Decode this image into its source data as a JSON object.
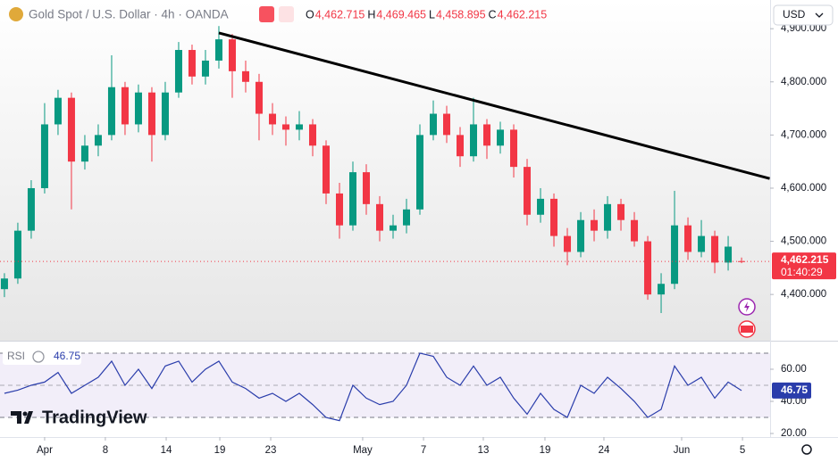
{
  "chart_data": [
    {
      "type": "candlestick",
      "title": "Gold Spot / U.S. Dollar · 4h · OANDA",
      "legend_values": [
        {
          "key": "O",
          "value": "4,462.715"
        },
        {
          "key": "H",
          "value": "4,469.465"
        },
        {
          "key": "L",
          "value": "4,458.895"
        },
        {
          "key": "C",
          "value": "4,462.215"
        }
      ],
      "currency": "USD",
      "countdown": "01:40:29",
      "last_value_label": "4,462.215",
      "up_color": "#089981",
      "down_color": "#f23645",
      "x": [
        0,
        1,
        2,
        3,
        4,
        5,
        6,
        7,
        8,
        9,
        10,
        11,
        12,
        13,
        14,
        15,
        16,
        17,
        18,
        19,
        20,
        21,
        22,
        23,
        24,
        25,
        26,
        27,
        28,
        29,
        30,
        31,
        32,
        33,
        34,
        35,
        36,
        37,
        38,
        39,
        40,
        41,
        42,
        43,
        44,
        45,
        46,
        47,
        48,
        49,
        50,
        51,
        52,
        53,
        54,
        55
      ],
      "open": [
        4410,
        4430,
        4520,
        4600,
        4720,
        4770,
        4650,
        4680,
        4700,
        4790,
        4720,
        4780,
        4700,
        4780,
        4860,
        4810,
        4840,
        4880,
        4820,
        4800,
        4740,
        4720,
        4710,
        4720,
        4680,
        4590,
        4530,
        4630,
        4570,
        4520,
        4530,
        4560,
        4700,
        4740,
        4700,
        4660,
        4720,
        4680,
        4710,
        4640,
        4550,
        4580,
        4510,
        4480,
        4540,
        4520,
        4570,
        4540,
        4500,
        4400,
        4420,
        4530,
        4480,
        4510,
        4460,
        4462.715
      ],
      "high": [
        4440,
        4535,
        4615,
        4760,
        4785,
        4780,
        4700,
        4720,
        4850,
        4800,
        4795,
        4790,
        4800,
        4875,
        4870,
        4860,
        4905,
        4890,
        4840,
        4815,
        4760,
        4735,
        4745,
        4730,
        4690,
        4610,
        4650,
        4645,
        4585,
        4550,
        4580,
        4720,
        4765,
        4755,
        4715,
        4770,
        4730,
        4725,
        4720,
        4655,
        4600,
        4590,
        4525,
        4555,
        4560,
        4585,
        4580,
        4555,
        4510,
        4440,
        4595,
        4545,
        4540,
        4520,
        4510,
        4469.465
      ],
      "low": [
        4395,
        4420,
        4505,
        4590,
        4700,
        4560,
        4635,
        4660,
        4690,
        4700,
        4705,
        4650,
        4690,
        4770,
        4795,
        4795,
        4825,
        4770,
        4780,
        4690,
        4700,
        4680,
        4690,
        4660,
        4570,
        4505,
        4520,
        4550,
        4500,
        4505,
        4515,
        4550,
        4690,
        4685,
        4640,
        4650,
        4655,
        4665,
        4620,
        4530,
        4535,
        4490,
        4455,
        4470,
        4500,
        4505,
        4520,
        4490,
        4390,
        4365,
        4410,
        4465,
        4470,
        4440,
        4445,
        4458.895
      ],
      "close": [
        4430,
        4520,
        4600,
        4720,
        4770,
        4650,
        4680,
        4700,
        4790,
        4720,
        4780,
        4700,
        4780,
        4860,
        4810,
        4840,
        4880,
        4820,
        4800,
        4740,
        4720,
        4710,
        4720,
        4680,
        4590,
        4530,
        4630,
        4570,
        4520,
        4530,
        4560,
        4700,
        4740,
        4700,
        4660,
        4720,
        4680,
        4710,
        4640,
        4550,
        4580,
        4510,
        4480,
        4540,
        4520,
        4570,
        4540,
        4500,
        4400,
        4420,
        4530,
        4480,
        4510,
        4460,
        4490,
        4462.215
      ],
      "xlim": [
        -0.33,
        57.13
      ],
      "ylim": [
        4313,
        4954
      ],
      "yticks": [
        {
          "value": 4400,
          "label": "4,400.000"
        },
        {
          "value": 4500,
          "label": "4,500.000"
        },
        {
          "value": 4600,
          "label": "4,600.000"
        },
        {
          "value": 4700,
          "label": "4,700.000"
        },
        {
          "value": 4800,
          "label": "4,800.000"
        },
        {
          "value": 4900,
          "label": "4,900.000"
        }
      ],
      "trendline": {
        "x": [
          16,
          57.1
        ],
        "y": [
          4892,
          4618
        ],
        "color": "#000000"
      }
    },
    {
      "type": "line",
      "title": "RSI",
      "color": "#2a3dab",
      "value_label": "46.75",
      "x": [
        0,
        1,
        2,
        3,
        4,
        5,
        6,
        7,
        8,
        9,
        10,
        11,
        12,
        13,
        14,
        15,
        16,
        17,
        18,
        19,
        20,
        21,
        22,
        23,
        24,
        25,
        26,
        27,
        28,
        29,
        30,
        31,
        32,
        33,
        34,
        35,
        36,
        37,
        38,
        39,
        40,
        41,
        42,
        43,
        44,
        45,
        46,
        47,
        48,
        49,
        50,
        51,
        52,
        53,
        54,
        55
      ],
      "values": [
        45,
        47,
        50,
        52,
        58,
        45,
        50,
        55,
        65,
        50,
        60,
        48,
        62,
        65,
        52,
        60,
        65,
        52,
        48,
        42,
        45,
        40,
        45,
        38,
        30,
        28,
        50,
        42,
        38,
        40,
        50,
        70,
        68,
        55,
        50,
        62,
        50,
        55,
        42,
        32,
        45,
        35,
        30,
        50,
        45,
        55,
        48,
        40,
        30,
        35,
        62,
        50,
        55,
        42,
        52,
        46.75
      ],
      "bands": [
        30,
        70
      ],
      "midline": 50,
      "xlim": [
        -0.33,
        57.13
      ],
      "ylim": [
        17.8,
        77.2
      ],
      "yticks": [
        {
          "value": 20,
          "label": "20.00"
        },
        {
          "value": 40,
          "label": "40.00"
        },
        {
          "value": 60,
          "label": "60.00"
        }
      ],
      "xticks": [
        {
          "value": 3,
          "label": "Apr"
        },
        {
          "value": 7.53,
          "label": "8"
        },
        {
          "value": 12.07,
          "label": "14"
        },
        {
          "value": 16.07,
          "label": "19"
        },
        {
          "value": 19.87,
          "label": "23"
        },
        {
          "value": 26.73,
          "label": "May"
        },
        {
          "value": 31.27,
          "label": "7"
        },
        {
          "value": 35.73,
          "label": "13"
        },
        {
          "value": 40.33,
          "label": "19"
        },
        {
          "value": 44.73,
          "label": "24"
        },
        {
          "value": 50.53,
          "label": "Jun"
        },
        {
          "value": 55.07,
          "label": "5"
        }
      ]
    }
  ],
  "logo": "TradingView"
}
